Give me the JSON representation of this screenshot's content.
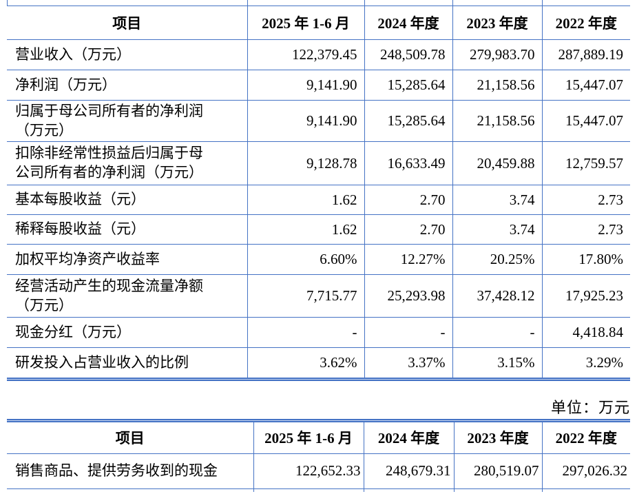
{
  "colors": {
    "table_border": "#4472C4",
    "double_rule_core": "#c9d8f2"
  },
  "unit_note": "单位：万元",
  "tables": [
    {
      "name": "financial-indicators",
      "headers": [
        "项目",
        "2025 年 1-6 月",
        "2024 年度",
        "2023 年度",
        "2022 年度"
      ],
      "rows": [
        {
          "label": "营业收入（万元）",
          "values": [
            "122,379.45",
            "248,509.78",
            "279,983.70",
            "287,889.19"
          ]
        },
        {
          "label": "净利润（万元）",
          "values": [
            "9,141.90",
            "15,285.64",
            "21,158.56",
            "15,447.07"
          ]
        },
        {
          "label": "归属于母公司所有者的净利润\n（万元）",
          "values": [
            "9,141.90",
            "15,285.64",
            "21,158.56",
            "15,447.07"
          ]
        },
        {
          "label": "扣除非经常性损益后归属于母\n公司所有者的净利润（万元）",
          "values": [
            "9,128.78",
            "16,633.49",
            "20,459.88",
            "12,759.57"
          ]
        },
        {
          "label": "基本每股收益（元）",
          "values": [
            "1.62",
            "2.70",
            "3.74",
            "2.73"
          ]
        },
        {
          "label": "稀释每股收益（元）",
          "values": [
            "1.62",
            "2.70",
            "3.74",
            "2.73"
          ]
        },
        {
          "label": "加权平均净资产收益率",
          "values": [
            "6.60%",
            "12.27%",
            "20.25%",
            "17.80%"
          ]
        },
        {
          "label": "经营活动产生的现金流量净额\n（万元）",
          "values": [
            "7,715.77",
            "25,293.98",
            "37,428.12",
            "17,925.23"
          ]
        },
        {
          "label": "现金分红（万元）",
          "values": [
            "-",
            "-",
            "-",
            "4,418.84"
          ]
        },
        {
          "label": "研发投入占营业收入的比例",
          "values": [
            "3.62%",
            "3.37%",
            "3.15%",
            "3.29%"
          ]
        }
      ]
    },
    {
      "name": "cash-receipts",
      "headers": [
        "项目",
        "2025 年 1-6 月",
        "2024 年度",
        "2023 年度",
        "2022 年度"
      ],
      "rows": [
        {
          "label": "销售商品、提供劳务收到的现金",
          "values": [
            "122,652.33",
            "248,679.31",
            "280,519.07",
            "297,026.32"
          ]
        }
      ]
    }
  ]
}
